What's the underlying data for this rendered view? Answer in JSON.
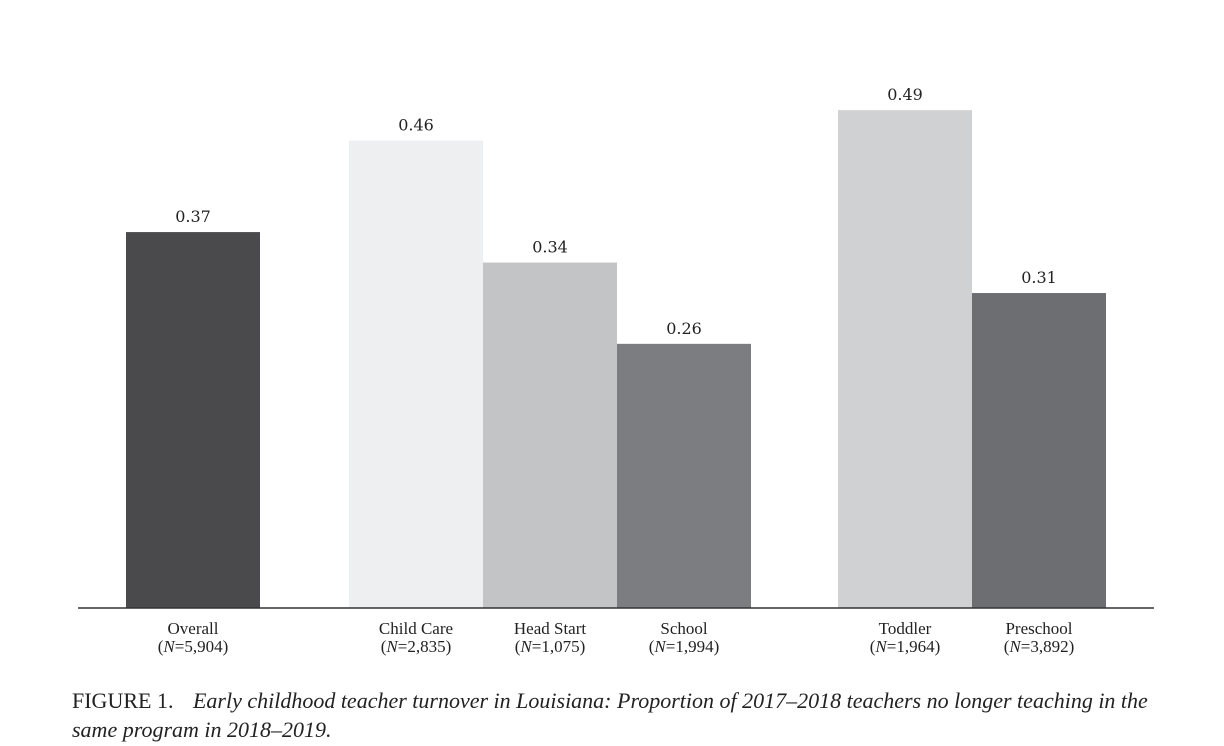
{
  "chart_data": {
    "type": "bar",
    "categories": [
      "Overall",
      "Child Care",
      "Head Start",
      "School",
      "Toddler",
      "Preschool"
    ],
    "sample_sizes": [
      "5,904",
      "2,835",
      "1,075",
      "1,994",
      "1,964",
      "3,892"
    ],
    "values": [
      0.37,
      0.46,
      0.34,
      0.26,
      0.49,
      0.31
    ],
    "value_labels": [
      "0.37",
      "0.46",
      "0.34",
      "0.26",
      "0.49",
      "0.31"
    ],
    "colors": [
      "#4a4a4c",
      "#eeeff1",
      "#c3c4c6",
      "#7c7d80",
      "#d0d1d3",
      "#6d6e72"
    ],
    "groups": [
      [
        0
      ],
      [
        1,
        2,
        3
      ],
      [
        4,
        5
      ]
    ],
    "ylim": [
      0,
      0.5
    ],
    "title": "",
    "xlabel": "",
    "ylabel": ""
  },
  "caption": {
    "figure_label": "FIGURE 1.",
    "text": "Early childhood teacher turnover in Louisiana: Proportion of 2017–2018 teachers no longer teaching in the same program in 2018–2019."
  }
}
